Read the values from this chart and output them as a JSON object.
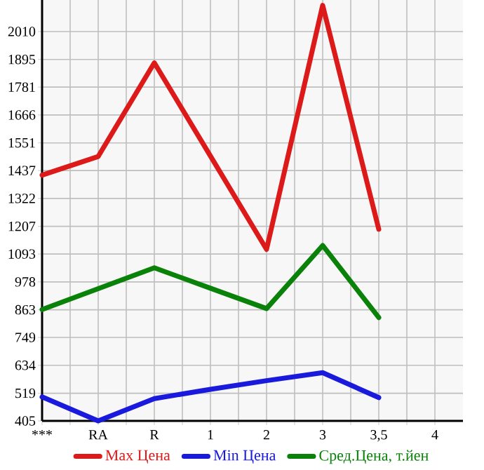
{
  "chart_data": {
    "type": "line",
    "categories": [
      "***",
      "RA",
      "R",
      "1",
      "2",
      "3",
      "3,5",
      "4"
    ],
    "series": [
      {
        "name": "Max Цена",
        "color": "#dd1a1a",
        "values": [
          1418,
          1495,
          1881,
          1497,
          1112,
          2118,
          1195,
          null
        ]
      },
      {
        "name": "Min Цена",
        "color": "#1a1add",
        "values": [
          504,
          405,
          497,
          535,
          571,
          604,
          501,
          null
        ]
      },
      {
        "name": "Сред.Цена, т.йен",
        "color": "#0a820a",
        "values": [
          864,
          950,
          1036,
          952,
          868,
          1128,
          831,
          null
        ]
      }
    ],
    "ylim": [
      405,
      2140
    ],
    "yticks": [
      405,
      519,
      634,
      749,
      863,
      978,
      1093,
      1207,
      1322,
      1437,
      1551,
      1666,
      1781,
      1895,
      2010
    ],
    "grid": true,
    "legend": "bottom",
    "marker": "none",
    "line_style": "solid"
  }
}
